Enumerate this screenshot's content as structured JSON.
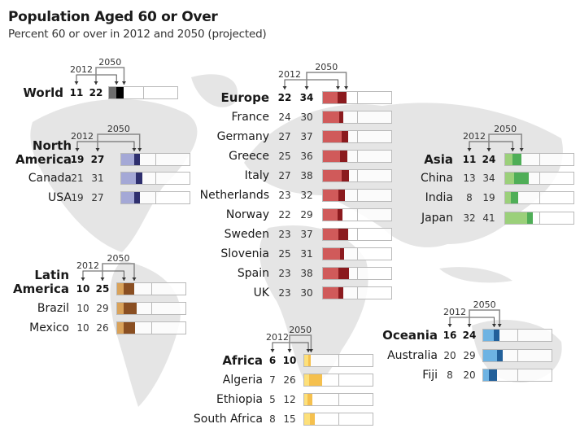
{
  "title": "Population Aged 60 or Over",
  "subtitle": "Percent 60 or over in 2012 and 2050 (projected)",
  "chart_data": {
    "type": "bar",
    "title": "Population Aged 60 or Over",
    "subtitle": "Percent 60 or over in 2012 and 2050 (projected)",
    "xlim": [
      0,
      100
    ],
    "series_labels": [
      "2012",
      "2050"
    ],
    "groups": [
      {
        "region": "World",
        "colors": [
          "#6d6d6d",
          "#000000"
        ],
        "rows": [
          {
            "name": "World",
            "v2012": 11,
            "v2050": 22
          }
        ]
      },
      {
        "region": "North America",
        "colors": [
          "#a4a8d6",
          "#2e2f6e"
        ],
        "rows": [
          {
            "name": "North America",
            "v2012": 19,
            "v2050": 27
          },
          {
            "name": "Canada",
            "v2012": 21,
            "v2050": 31
          },
          {
            "name": "USA",
            "v2012": 19,
            "v2050": 27
          }
        ]
      },
      {
        "region": "Latin America",
        "colors": [
          "#d9a25a",
          "#8a4f22"
        ],
        "rows": [
          {
            "name": "Latin America",
            "v2012": 10,
            "v2050": 25
          },
          {
            "name": "Brazil",
            "v2012": 10,
            "v2050": 29
          },
          {
            "name": "Mexico",
            "v2012": 10,
            "v2050": 26
          }
        ]
      },
      {
        "region": "Europe",
        "colors": [
          "#d05a5a",
          "#8b1a1e"
        ],
        "rows": [
          {
            "name": "Europe",
            "v2012": 22,
            "v2050": 34
          },
          {
            "name": "France",
            "v2012": 24,
            "v2050": 30
          },
          {
            "name": "Germany",
            "v2012": 27,
            "v2050": 37
          },
          {
            "name": "Greece",
            "v2012": 25,
            "v2050": 36
          },
          {
            "name": "Italy",
            "v2012": 27,
            "v2050": 38
          },
          {
            "name": "Netherlands",
            "v2012": 23,
            "v2050": 32
          },
          {
            "name": "Norway",
            "v2012": 22,
            "v2050": 29
          },
          {
            "name": "Sweden",
            "v2012": 23,
            "v2050": 37
          },
          {
            "name": "Slovenia",
            "v2012": 25,
            "v2050": 31
          },
          {
            "name": "Spain",
            "v2012": 23,
            "v2050": 38
          },
          {
            "name": "UK",
            "v2012": 23,
            "v2050": 30
          }
        ]
      },
      {
        "region": "Africa",
        "colors": [
          "#fde07a",
          "#f5c04e"
        ],
        "rows": [
          {
            "name": "Africa",
            "v2012": 6,
            "v2050": 10
          },
          {
            "name": "Algeria",
            "v2012": 7,
            "v2050": 26
          },
          {
            "name": "Ethiopia",
            "v2012": 5,
            "v2050": 12
          },
          {
            "name": "South Africa",
            "v2012": 8,
            "v2050": 15
          }
        ]
      },
      {
        "region": "Asia",
        "colors": [
          "#9bd07a",
          "#4fae57"
        ],
        "rows": [
          {
            "name": "Asia",
            "v2012": 11,
            "v2050": 24
          },
          {
            "name": "China",
            "v2012": 13,
            "v2050": 34
          },
          {
            "name": "India",
            "v2012": 8,
            "v2050": 19
          },
          {
            "name": "Japan",
            "v2012": 32,
            "v2050": 41
          }
        ]
      },
      {
        "region": "Oceania",
        "colors": [
          "#6db3e3",
          "#22609a"
        ],
        "rows": [
          {
            "name": "Oceania",
            "v2012": 16,
            "v2050": 24
          },
          {
            "name": "Australia",
            "v2012": 20,
            "v2050": 29
          },
          {
            "name": "Fiji",
            "v2012": 8,
            "v2050": 20
          }
        ]
      }
    ]
  }
}
